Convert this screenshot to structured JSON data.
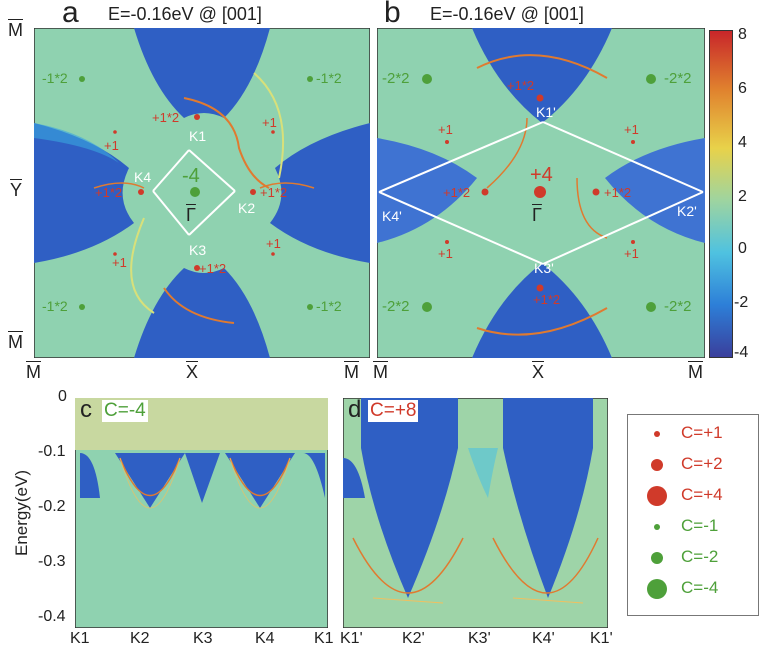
{
  "panel_a": {
    "letter": "a",
    "title": "E=-0.16eV @ [001]",
    "corner_top": "M",
    "side_left_mid": "Y",
    "corner_bottom": "M",
    "bottom_left": "M",
    "bottom_mid": "X",
    "bottom_right": "M",
    "center_label": "Γ",
    "center_charge": "-4",
    "k_labels": [
      "K1",
      "K2",
      "K3",
      "K4"
    ],
    "charges": [
      "-1*2",
      "-1*2",
      "-1*2",
      "-1*2",
      "+1*2",
      "+1*2",
      "+1*2",
      "+1*2",
      "+1",
      "+1",
      "+1",
      "+1"
    ]
  },
  "panel_b": {
    "letter": "b",
    "title": "E=-0.16eV @ [001]",
    "bottom_left": "M",
    "bottom_mid": "X",
    "bottom_right": "M",
    "center_label": "Γ",
    "center_charge": "+4",
    "k_labels": [
      "K1'",
      "K2'",
      "K3'",
      "K4'"
    ],
    "charges": [
      "-2*2",
      "-2*2",
      "-2*2",
      "-2*2",
      "+1*2",
      "+1*2",
      "+1*2",
      "+1*2",
      "+1",
      "+1",
      "+1",
      "+1"
    ]
  },
  "colorbar": {
    "ticks": [
      "8",
      "6",
      "4",
      "2",
      "0",
      "-2",
      "-4"
    ],
    "range": [
      -4,
      8
    ],
    "colors": [
      "#3a3f9c",
      "#2d7fd8",
      "#4fc2e0",
      "#9ed4a0",
      "#e8d24a",
      "#e0822e",
      "#c8262a"
    ]
  },
  "panel_c": {
    "letter": "c",
    "label": "C=-4",
    "ylabel": "Energy(eV)",
    "yticks": [
      "0",
      "-0.1",
      "-0.2",
      "-0.3",
      "-0.4"
    ],
    "xticks": [
      "K1",
      "K2",
      "K3",
      "K4",
      "K1"
    ]
  },
  "panel_d": {
    "letter": "d",
    "label": "C=+8",
    "xticks": [
      "K1'",
      "K2'",
      "K3'",
      "K4'",
      "K1'"
    ]
  },
  "legend": {
    "items": [
      {
        "label": "C=+1",
        "color": "#d03a2a",
        "size": 3
      },
      {
        "label": "C=+2",
        "color": "#d03a2a",
        "size": 6
      },
      {
        "label": "C=+4",
        "color": "#d03a2a",
        "size": 10
      },
      {
        "label": "C=-1",
        "color": "#4ea03a",
        "size": 3
      },
      {
        "label": "C=-2",
        "color": "#4ea03a",
        "size": 6
      },
      {
        "label": "C=-4",
        "color": "#4ea03a",
        "size": 10
      }
    ]
  }
}
